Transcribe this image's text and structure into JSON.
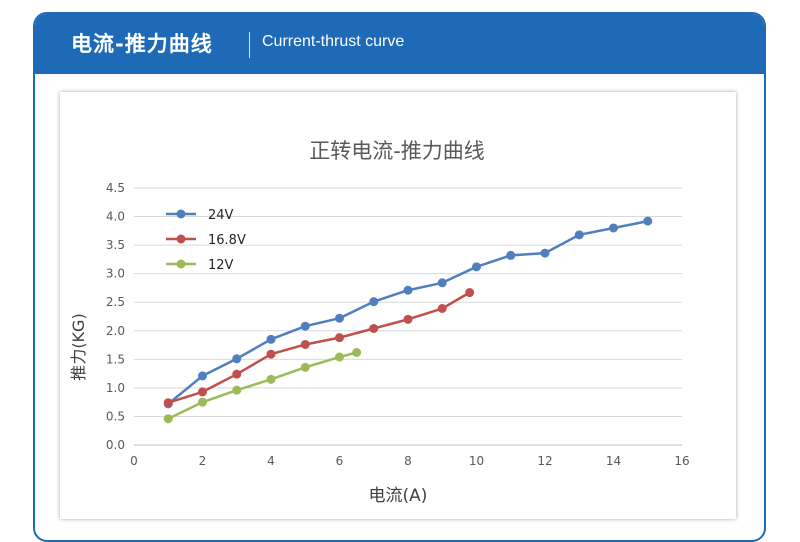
{
  "header": {
    "title": "电流-推力曲线",
    "subtitle": "Current-thrust curve"
  },
  "colors": {
    "header_bg": "#1e6ab7",
    "series_24v": "#4f7fbf",
    "series_16_8v": "#c0504d",
    "series_12v": "#9bbb59"
  },
  "chart_data": {
    "type": "line",
    "title": "正转电流-推力曲线",
    "xlabel": "电流(A)",
    "ylabel": "推力(KG)",
    "xlim": [
      0,
      16
    ],
    "ylim": [
      0,
      4.5
    ],
    "x_ticks": [
      "0",
      "2",
      "4",
      "6",
      "8",
      "10",
      "12",
      "14",
      "16"
    ],
    "y_ticks": [
      "0.0",
      "0.5",
      "1.0",
      "1.5",
      "2.0",
      "2.5",
      "3.0",
      "3.5",
      "4.0",
      "4.5"
    ],
    "grid": true,
    "legend_position": "top-left",
    "series": [
      {
        "name": "24V",
        "color": "#4f7fbf",
        "x": [
          1,
          2,
          3,
          4,
          5,
          6,
          7,
          8,
          9,
          10,
          11,
          12,
          13,
          14,
          15
        ],
        "y": [
          0.72,
          1.21,
          1.51,
          1.85,
          2.08,
          2.22,
          2.51,
          2.71,
          2.84,
          3.12,
          3.32,
          3.36,
          3.68,
          3.8,
          3.92
        ]
      },
      {
        "name": "16.8V",
        "color": "#c0504d",
        "x": [
          1,
          2,
          3,
          4,
          5,
          6,
          7,
          8,
          9,
          9.8
        ],
        "y": [
          0.74,
          0.93,
          1.24,
          1.59,
          1.76,
          1.88,
          2.04,
          2.2,
          2.39,
          2.67
        ]
      },
      {
        "name": "12V",
        "color": "#9bbb59",
        "x": [
          1,
          2,
          3,
          4,
          5,
          6,
          6.5
        ],
        "y": [
          0.46,
          0.75,
          0.96,
          1.15,
          1.36,
          1.54,
          1.62
        ]
      }
    ]
  }
}
